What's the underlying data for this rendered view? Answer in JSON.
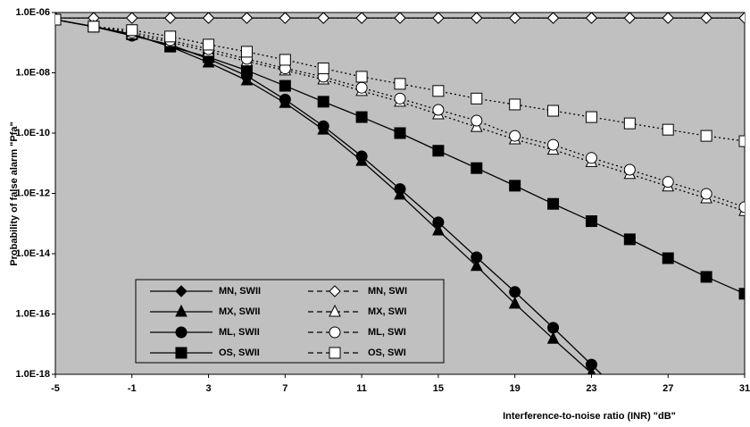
{
  "chart_data": {
    "type": "line",
    "y_label": "Probability of false alarm \"Pfa\"",
    "x_label": "Interference-to-noise ratio (INR) \"dB\"",
    "log_y": true,
    "background": "#c0c0c0",
    "x": [
      -5,
      -3,
      -1,
      1,
      3,
      5,
      7,
      9,
      11,
      13,
      15,
      17,
      19,
      21,
      23,
      25,
      27,
      29,
      31
    ],
    "xlim": [
      -5,
      31
    ],
    "xticks": [
      -5,
      -1,
      3,
      7,
      11,
      15,
      19,
      23,
      27,
      31
    ],
    "ylim": [
      1e-18,
      1e-06
    ],
    "yticks": [
      {
        "value": 1e-18,
        "label": "1.0E-18"
      },
      {
        "value": 1e-16,
        "label": "1.0E-16"
      },
      {
        "value": 1e-14,
        "label": "1.0E-14"
      },
      {
        "value": 1e-12,
        "label": "1.0E-12"
      },
      {
        "value": 1e-10,
        "label": "1.0E-10"
      },
      {
        "value": 1e-08,
        "label": "1.0E-08"
      },
      {
        "value": 1e-06,
        "label": "1.0E-06"
      }
    ],
    "series": [
      {
        "name": "MN, SWII",
        "color": "#000000",
        "marker": "diamond",
        "fill": "#000000",
        "dashed": false,
        "values": [
          6.6e-07,
          6.6e-07,
          6.6e-07,
          6.6e-07,
          6.6e-07,
          6.6e-07,
          6.6e-07,
          6.6e-07,
          6.6e-07,
          6.6e-07,
          6.6e-07,
          6.6e-07,
          6.6e-07,
          6.6e-07,
          6.6e-07,
          6.6e-07,
          6.6e-07,
          6.6e-07,
          6.6e-07
        ]
      },
      {
        "name": "MX, SWII",
        "color": "#000000",
        "marker": "triangle",
        "fill": "#000000",
        "dashed": false,
        "values": [
          5.8e-07,
          3.4e-07,
          1.9e-07,
          7.4e-08,
          2.2e-08,
          5.6e-09,
          1e-09,
          1.3e-10,
          1.2e-11,
          9.1e-13,
          5.9e-14,
          3.9e-15,
          2.2e-16,
          1.5e-17,
          1.1e-18,
          6.6e-20,
          null,
          null,
          null
        ]
      },
      {
        "name": "ML, SWII",
        "color": "#000000",
        "marker": "circle",
        "fill": "#000000",
        "dashed": false,
        "values": [
          5.8e-07,
          3.4e-07,
          1.7e-07,
          8.6e-08,
          2.9e-08,
          7.9e-09,
          1.3e-09,
          1.7e-10,
          1.7e-11,
          1.4e-12,
          1.1e-13,
          7.6e-15,
          5.4e-16,
          3.5e-17,
          2.1e-18,
          1.2e-19,
          null,
          null,
          null
        ]
      },
      {
        "name": "OS, SWII",
        "color": "#000000",
        "marker": "square",
        "fill": "#000000",
        "dashed": false,
        "values": [
          5.8e-07,
          3.4e-07,
          1.9e-07,
          7.4e-08,
          3.3e-08,
          1.2e-08,
          3.7e-09,
          1.1e-09,
          3.4e-10,
          1e-10,
          2.6e-11,
          6.9e-12,
          1.8e-12,
          4.5e-13,
          1.2e-13,
          3e-14,
          7.1e-15,
          1.7e-15,
          4.7e-16
        ]
      },
      {
        "name": "MN, SWI",
        "color": "#000000",
        "marker": "diamond",
        "fill": "#ffffff",
        "dashed": true,
        "values": [
          6.6e-07,
          6.6e-07,
          6.6e-07,
          6.6e-07,
          6.6e-07,
          6.6e-07,
          6.6e-07,
          6.6e-07,
          6.6e-07,
          6.6e-07,
          6.6e-07,
          6.6e-07,
          6.6e-07,
          6.6e-07,
          6.6e-07,
          6.6e-07,
          6.6e-07,
          6.6e-07,
          6.6e-07
        ]
      },
      {
        "name": "MX, SWI",
        "color": "#000000",
        "marker": "triangle",
        "fill": "#ffffff",
        "dashed": true,
        "values": [
          5.8e-07,
          3.4e-07,
          1.9e-07,
          1.05e-07,
          5e-08,
          2.4e-08,
          1.2e-08,
          6e-09,
          2.5e-09,
          1.1e-09,
          4.2e-10,
          1.6e-10,
          6.2e-11,
          2.8e-11,
          1.1e-11,
          4.4e-12,
          1.7e-12,
          6.9e-13,
          2.6e-13
        ]
      },
      {
        "name": "ML, SWI",
        "color": "#000000",
        "marker": "circle",
        "fill": "#ffffff",
        "dashed": true,
        "values": [
          5.8e-07,
          3.4e-07,
          2.2e-07,
          1.2e-07,
          6.1e-08,
          2.9e-08,
          1.4e-08,
          7.4e-09,
          3.2e-09,
          1.4e-09,
          5.9e-10,
          2.6e-10,
          8.1e-11,
          4.1e-11,
          1.5e-11,
          6.1e-12,
          2.4e-12,
          9.7e-13,
          3.5e-13
        ]
      },
      {
        "name": "OS, SWI",
        "color": "#000000",
        "marker": "square",
        "fill": "#ffffff",
        "dashed": true,
        "values": [
          5.8e-07,
          3.4e-07,
          2.6e-07,
          1.6e-07,
          8.6e-08,
          5e-08,
          2.7e-08,
          1.4e-08,
          7.4e-09,
          4.3e-09,
          2.5e-09,
          1.4e-09,
          8.9e-10,
          5.5e-10,
          3.4e-10,
          2.1e-10,
          1.3e-10,
          8.1e-11,
          5.4e-11
        ]
      }
    ]
  }
}
